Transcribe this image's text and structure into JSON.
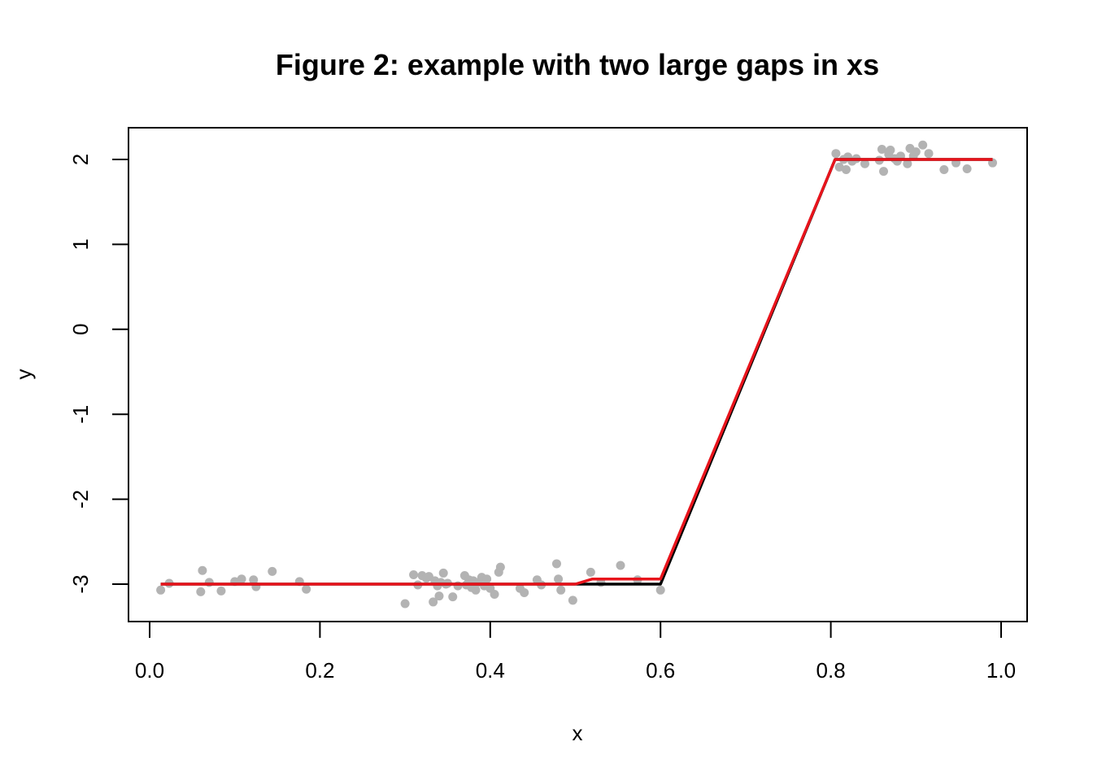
{
  "chart_data": {
    "type": "scatter",
    "title": "Figure 2: example with two large gaps in xs",
    "xlabel": "x",
    "ylabel": "y",
    "xlim": [
      0.0,
      1.0
    ],
    "ylim": [
      -3.0,
      2.0
    ],
    "x_ticks": [
      "0.0",
      "0.2",
      "0.4",
      "0.6",
      "0.8",
      "1.0"
    ],
    "y_ticks": [
      "-3",
      "-2",
      "-1",
      "0",
      "1",
      "2"
    ],
    "grid": false,
    "colors": {
      "points": "#b3b3b3",
      "true_curve": "#000000",
      "fit_curve": "#e8141c",
      "frame": "#000000"
    },
    "series": [
      {
        "kind": "points",
        "x": [
          0.013,
          0.023,
          0.06,
          0.062,
          0.07,
          0.084,
          0.1,
          0.108,
          0.122,
          0.125,
          0.144,
          0.176,
          0.184,
          0.3,
          0.31,
          0.315,
          0.32,
          0.325,
          0.328,
          0.333,
          0.335,
          0.338,
          0.34,
          0.342,
          0.345,
          0.348,
          0.35,
          0.356,
          0.362,
          0.37,
          0.372,
          0.375,
          0.378,
          0.38,
          0.383,
          0.386,
          0.39,
          0.393,
          0.396,
          0.4,
          0.405,
          0.41,
          0.412,
          0.435,
          0.44,
          0.455,
          0.46,
          0.478,
          0.48,
          0.483,
          0.497,
          0.518,
          0.53,
          0.553,
          0.573,
          0.6,
          0.806,
          0.81,
          0.815,
          0.818,
          0.82,
          0.825,
          0.83,
          0.84,
          0.857,
          0.86,
          0.862,
          0.868,
          0.87,
          0.875,
          0.878,
          0.882,
          0.89,
          0.893,
          0.897,
          0.9,
          0.908,
          0.915,
          0.933,
          0.947,
          0.96,
          0.99
        ],
        "y": [
          -3.07,
          -2.99,
          -3.09,
          -2.84,
          -2.98,
          -3.08,
          -2.97,
          -2.94,
          -2.95,
          -3.03,
          -2.85,
          -2.97,
          -3.06,
          -3.23,
          -2.89,
          -3.01,
          -2.9,
          -2.93,
          -2.91,
          -3.21,
          -2.96,
          -3.02,
          -3.14,
          -2.98,
          -2.87,
          -3.0,
          -2.99,
          -3.15,
          -3.02,
          -2.9,
          -3.01,
          -2.95,
          -3.04,
          -2.96,
          -3.07,
          -2.98,
          -2.92,
          -3.02,
          -2.94,
          -3.05,
          -3.12,
          -2.86,
          -2.8,
          -3.05,
          -3.1,
          -2.95,
          -3.01,
          -2.76,
          -2.94,
          -3.07,
          -3.19,
          -2.86,
          -2.98,
          -2.78,
          -2.95,
          -3.07,
          2.07,
          1.91,
          2.0,
          1.88,
          2.03,
          1.98,
          2.01,
          1.95,
          1.99,
          2.12,
          1.86,
          2.06,
          2.11,
          2.01,
          1.98,
          2.04,
          1.95,
          2.13,
          2.04,
          2.09,
          2.17,
          2.07,
          1.88,
          1.96,
          1.89,
          1.96
        ]
      },
      {
        "kind": "line",
        "role": "true",
        "x": [
          0.013,
          0.6,
          0.805,
          0.99
        ],
        "y": [
          -3.0,
          -3.0,
          2.0,
          2.0
        ]
      },
      {
        "kind": "line",
        "role": "fit",
        "x": [
          0.013,
          0.3,
          0.5,
          0.52,
          0.6,
          0.805,
          0.99
        ],
        "y": [
          -3.0,
          -3.0,
          -3.0,
          -2.94,
          -2.94,
          2.0,
          2.0
        ]
      }
    ]
  }
}
